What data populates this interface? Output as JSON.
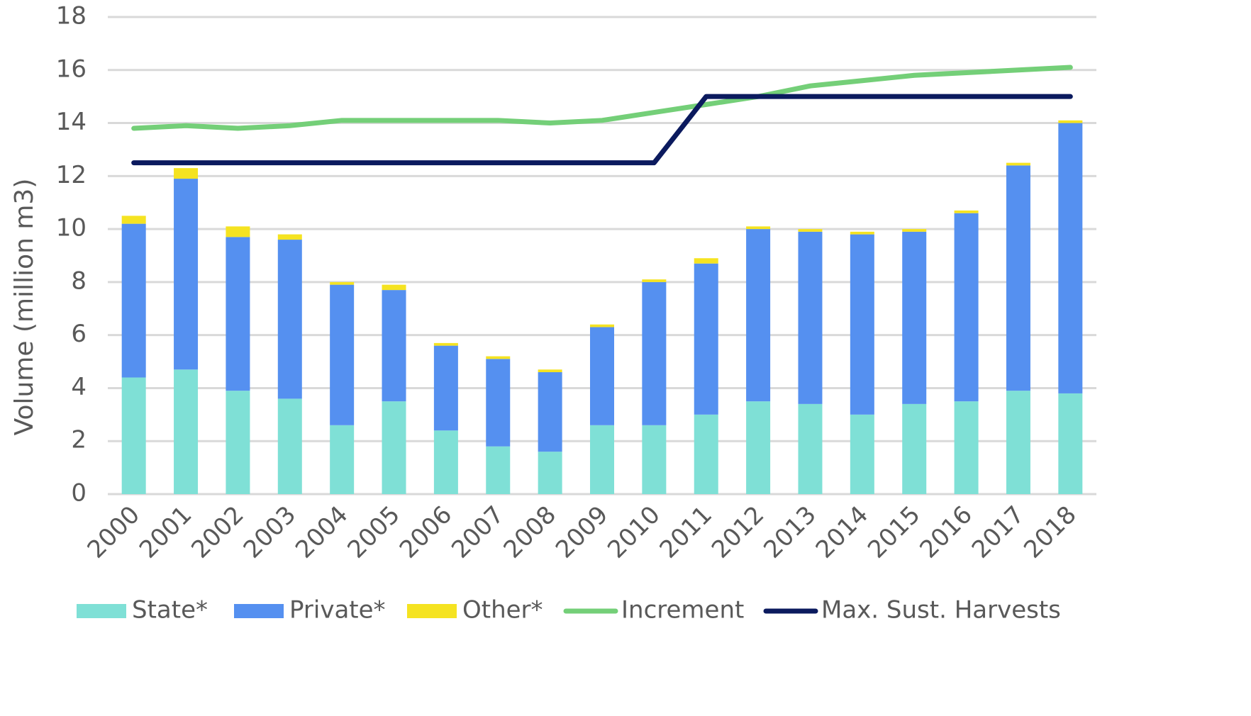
{
  "chart_data": {
    "type": "bar",
    "stacked": true,
    "title": "",
    "xlabel": "",
    "ylabel": "Volume (million m3)",
    "ylim": [
      0,
      18
    ],
    "yticks": [
      "0",
      "2",
      "4",
      "6",
      "8",
      "10",
      "12",
      "14",
      "16",
      "18"
    ],
    "grid": true,
    "legend_position": "bottom",
    "categories": [
      "2000",
      "2001",
      "2002",
      "2003",
      "2004",
      "2005",
      "2006",
      "2007",
      "2008",
      "2009",
      "2010",
      "2011",
      "2012",
      "2013",
      "2014",
      "2015",
      "2016",
      "2017",
      "2018"
    ],
    "series": [
      {
        "name": "State*",
        "kind": "bar",
        "color": "#7FE0D6",
        "values": [
          4.4,
          4.7,
          3.9,
          3.6,
          2.6,
          3.5,
          2.4,
          1.8,
          1.6,
          2.6,
          2.6,
          3.0,
          3.5,
          3.4,
          3.0,
          3.4,
          3.5,
          3.9,
          3.8
        ]
      },
      {
        "name": "Private*",
        "kind": "bar",
        "color": "#5590F0",
        "values": [
          5.8,
          7.2,
          5.8,
          6.0,
          5.3,
          4.2,
          3.2,
          3.3,
          3.0,
          3.7,
          5.4,
          5.7,
          6.5,
          6.5,
          6.8,
          6.5,
          7.1,
          8.5,
          10.2
        ]
      },
      {
        "name": "Other*",
        "kind": "bar",
        "color": "#F5E321",
        "values": [
          0.3,
          0.4,
          0.4,
          0.2,
          0.1,
          0.2,
          0.1,
          0.1,
          0.1,
          0.1,
          0.1,
          0.2,
          0.1,
          0.1,
          0.1,
          0.1,
          0.1,
          0.1,
          0.1
        ]
      },
      {
        "name": "Increment",
        "kind": "line",
        "color": "#74CF78",
        "values": [
          13.8,
          13.9,
          13.8,
          13.9,
          14.1,
          14.1,
          14.1,
          14.1,
          14.0,
          14.1,
          14.4,
          14.7,
          15.0,
          15.4,
          15.6,
          15.8,
          15.9,
          16.0,
          16.1
        ]
      },
      {
        "name": "Max. Sust. Harvests",
        "kind": "line",
        "color": "#0B1A5E",
        "values": [
          12.5,
          12.5,
          12.5,
          12.5,
          12.5,
          12.5,
          12.5,
          12.5,
          12.5,
          12.5,
          12.5,
          15.0,
          15.0,
          15.0,
          15.0,
          15.0,
          15.0,
          15.0,
          15.0
        ]
      }
    ]
  }
}
